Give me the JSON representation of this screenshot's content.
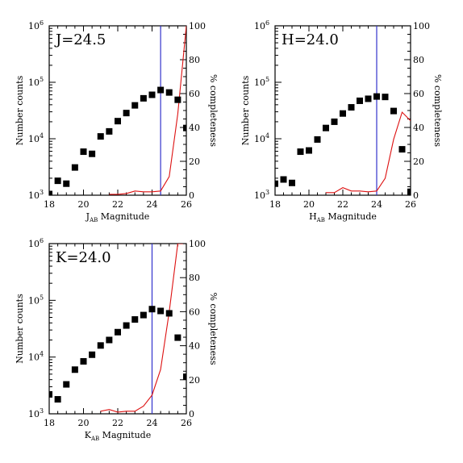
{
  "chart_data": [
    {
      "type": "scatter",
      "band": "J",
      "annotation": "J=24.5",
      "xlabel_main": "J",
      "xlabel_sub": "AB",
      "xlabel_rest": " Magnitude",
      "ylabel": "Number counts",
      "ylabel_right": "% completeness",
      "xlim": [
        18,
        26
      ],
      "ylim": [
        1000,
        1000000
      ],
      "yscale": "log",
      "y2lim": [
        0,
        100
      ],
      "x_ticks": [
        "18",
        "20",
        "22",
        "24",
        "26"
      ],
      "y_ticks": [
        "10",
        "10",
        "10",
        "10"
      ],
      "y_tick_exps": [
        "3",
        "4",
        "5",
        "6"
      ],
      "y2_ticks": [
        "0",
        "20",
        "40",
        "60",
        "80",
        "100"
      ],
      "limit_line": 24.5,
      "limit_color": "#3333cc",
      "completeness_color": "#dd1111",
      "series": [
        {
          "x": [
            18.0,
            18.5,
            19.0,
            19.5,
            20.0,
            20.5,
            21.0,
            21.5,
            22.0,
            22.5,
            23.0,
            23.5,
            24.0,
            24.5,
            25.0,
            25.5,
            26.0
          ],
          "y": [
            1050,
            1800,
            1600,
            3100,
            5900,
            5400,
            11000,
            13500,
            20500,
            28500,
            39000,
            52000,
            60000,
            73000,
            66000,
            49000,
            15500
          ]
        },
        {
          "x": [
            21.5,
            22.0,
            22.5,
            23.0,
            23.5,
            24.0,
            24.5,
            25.0,
            25.5,
            26.0
          ],
          "y": [
            0.5,
            0.5,
            1.0,
            2.5,
            2.0,
            2.0,
            2.5,
            11,
            48,
            100
          ]
        }
      ]
    },
    {
      "type": "scatter",
      "band": "H",
      "annotation": "H=24.0",
      "xlabel_main": "H",
      "xlabel_sub": "AB",
      "xlabel_rest": " Magnitude",
      "ylabel": "Number counts",
      "ylabel_right": "% completeness",
      "xlim": [
        18,
        26
      ],
      "ylim": [
        1000,
        1000000
      ],
      "yscale": "log",
      "y2lim": [
        0,
        100
      ],
      "x_ticks": [
        "18",
        "20",
        "22",
        "24",
        "26"
      ],
      "y_ticks": [
        "10",
        "10",
        "10",
        "10"
      ],
      "y_tick_exps": [
        "3",
        "4",
        "5",
        "6"
      ],
      "y2_ticks": [
        "0",
        "20",
        "40",
        "60",
        "80",
        "100"
      ],
      "limit_line": 24.0,
      "limit_color": "#3333cc",
      "completeness_color": "#dd1111",
      "series": [
        {
          "x": [
            18.0,
            18.5,
            19.0,
            19.5,
            20.0,
            20.5,
            21.0,
            21.5,
            22.0,
            22.5,
            23.0,
            23.5,
            24.0,
            24.5,
            25.0,
            25.5,
            26.0
          ],
          "y": [
            1600,
            1900,
            1650,
            5900,
            6200,
            9700,
            15500,
            20000,
            28000,
            36000,
            47000,
            51000,
            56000,
            55000,
            31000,
            6500,
            1150
          ]
        },
        {
          "x": [
            21.0,
            21.5,
            22.0,
            22.5,
            23.0,
            23.5,
            24.0,
            24.5,
            25.0,
            25.5,
            26.0
          ],
          "y": [
            1.5,
            1.5,
            4.5,
            2.5,
            2.5,
            2.0,
            2.5,
            10,
            33,
            49,
            44
          ]
        }
      ]
    },
    {
      "type": "scatter",
      "band": "K",
      "annotation": "K=24.0",
      "xlabel_main": "K",
      "xlabel_sub": "AB",
      "xlabel_rest": " Magnitude",
      "ylabel": "Number counts",
      "ylabel_right": "% completeness",
      "xlim": [
        18,
        26
      ],
      "ylim": [
        1000,
        1000000
      ],
      "yscale": "log",
      "y2lim": [
        0,
        100
      ],
      "x_ticks": [
        "18",
        "20",
        "22",
        "24",
        "26"
      ],
      "y_ticks": [
        "10",
        "10",
        "10",
        "10"
      ],
      "y_tick_exps": [
        "3",
        "4",
        "5",
        "6"
      ],
      "y2_ticks": [
        "0",
        "20",
        "40",
        "60",
        "80",
        "100"
      ],
      "limit_line": 24.0,
      "limit_color": "#3333cc",
      "completeness_color": "#dd1111",
      "series": [
        {
          "x": [
            18.0,
            18.5,
            19.0,
            19.5,
            20.0,
            20.5,
            21.0,
            21.5,
            22.0,
            22.5,
            23.0,
            23.5,
            24.0,
            24.5,
            25.0,
            25.5,
            26.0
          ],
          "y": [
            2200,
            1800,
            3300,
            6000,
            8400,
            11000,
            16000,
            20000,
            27500,
            36000,
            46000,
            55000,
            70000,
            65000,
            59000,
            22000,
            4500
          ]
        },
        {
          "x": [
            21.0,
            21.5,
            22.0,
            22.5,
            23.0,
            23.5,
            24.0,
            24.5,
            25.0,
            25.5,
            25.8
          ],
          "y": [
            1.5,
            2.5,
            1.0,
            1.5,
            1.5,
            4.5,
            11,
            26,
            60,
            100,
            100
          ]
        }
      ]
    }
  ]
}
